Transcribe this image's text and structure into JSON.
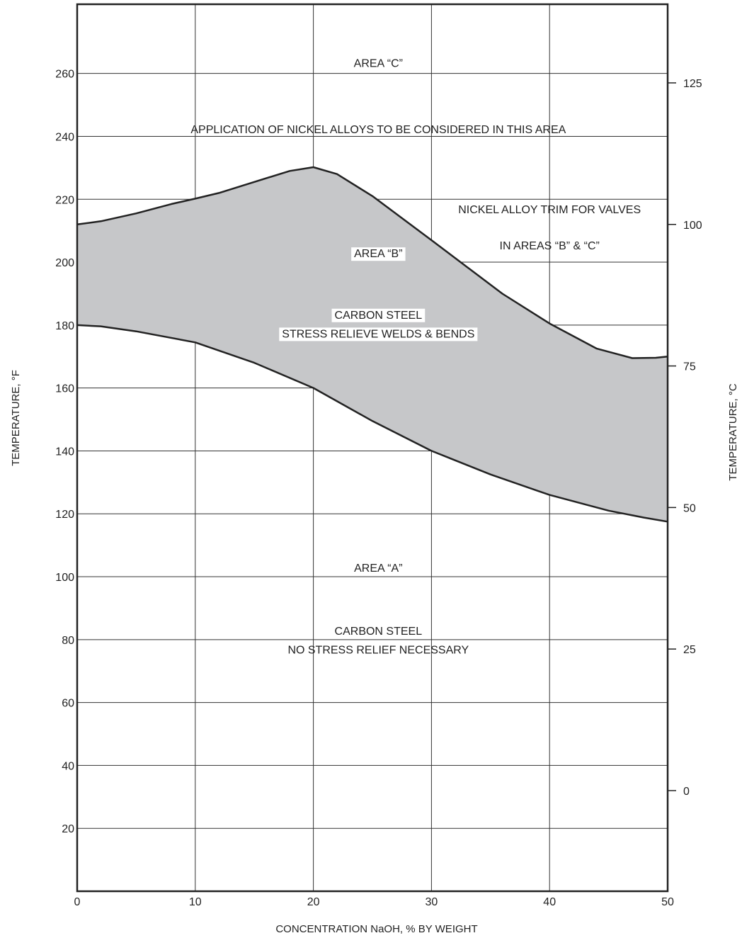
{
  "chart_data": {
    "type": "area",
    "xlabel": "CONCENTRATION NaOH, % BY WEIGHT",
    "ylabel": "TEMPERATURE, °F",
    "y2label": "TEMPERATURE, °C",
    "xlim": [
      0,
      50
    ],
    "ylim": [
      0,
      282
    ],
    "xticks": [
      0,
      10,
      20,
      30,
      40,
      50
    ],
    "yticks": [
      20,
      40,
      60,
      80,
      100,
      120,
      140,
      160,
      180,
      200,
      220,
      240,
      260
    ],
    "y2ticks": [
      0,
      25,
      50,
      75,
      100,
      125
    ],
    "grid": true,
    "band_fill": "#c6c7c9",
    "series": [
      {
        "x": [
          0,
          2,
          5,
          10,
          15,
          20,
          25,
          30,
          35,
          40,
          45,
          48,
          50
        ],
        "y": [
          180,
          179.6,
          178,
          174.5,
          168,
          160,
          149.5,
          140,
          132.5,
          126,
          121,
          118.8,
          117.5
        ]
      },
      {
        "x": [
          0,
          2,
          5,
          8,
          10,
          12,
          15,
          18,
          20,
          22,
          25,
          30,
          33,
          36,
          40,
          44,
          47,
          49,
          50
        ],
        "y": [
          212,
          213,
          215.5,
          218.5,
          220.2,
          222,
          225.5,
          229,
          230.2,
          228,
          221,
          207,
          198.5,
          190,
          180.5,
          172.5,
          169.5,
          169.6,
          170
        ]
      }
    ],
    "annotations": [
      {
        "text": "AREA “C”",
        "x": 25.5,
        "y": 263,
        "boxed": false
      },
      {
        "text": "APPLICATION OF NICKEL ALLOYS TO BE CONSIDERED IN THIS AREA",
        "x": 25.5,
        "y": 242,
        "boxed": false
      },
      {
        "text": "NICKEL ALLOY TRIM FOR VALVES",
        "x": 40,
        "y": 216.5,
        "boxed": false
      },
      {
        "text": "IN AREAS “B” & “C”",
        "x": 40,
        "y": 205,
        "boxed": false
      },
      {
        "text": "AREA “B”",
        "x": 25.5,
        "y": 202.5,
        "boxed": true
      },
      {
        "text": "CARBON STEEL",
        "x": 25.5,
        "y": 183,
        "boxed": true
      },
      {
        "text": "STRESS RELIEVE WELDS & BENDS",
        "x": 25.5,
        "y": 177,
        "boxed": true
      },
      {
        "text": "AREA “A”",
        "x": 25.5,
        "y": 102.5,
        "boxed": false
      },
      {
        "text": "CARBON STEEL",
        "x": 25.5,
        "y": 82.5,
        "boxed": false
      },
      {
        "text": "NO STRESS RELIEF NECESSARY",
        "x": 25.5,
        "y": 76.5,
        "boxed": false
      }
    ]
  }
}
